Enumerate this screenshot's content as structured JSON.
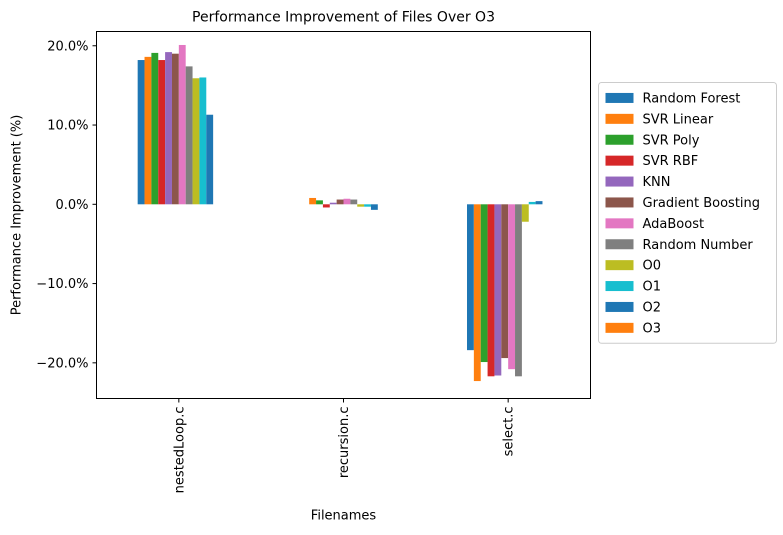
{
  "chart_data": {
    "type": "bar",
    "title": "Performance Improvement of Files Over O3",
    "xlabel": "Filenames",
    "ylabel": "Performance Improvement (%)",
    "categories": [
      "nestedLoop.c",
      "recursion.c",
      "select.c"
    ],
    "ylim": [
      -24.5,
      21.8
    ],
    "yticks": [
      {
        "value": 20,
        "label": "20.0%"
      },
      {
        "value": 10,
        "label": "10.0%"
      },
      {
        "value": 0,
        "label": "0.0%"
      },
      {
        "value": -10,
        "label": "−10.0%"
      },
      {
        "value": -20,
        "label": "−20.0%"
      }
    ],
    "grid": false,
    "legend_position": "right",
    "series": [
      {
        "name": "Random Forest",
        "color": "#1f77b4",
        "values": [
          18.2,
          0.0,
          -18.4
        ]
      },
      {
        "name": "SVR Linear",
        "color": "#ff7f0e",
        "values": [
          18.6,
          0.8,
          -22.3
        ]
      },
      {
        "name": "SVR Poly",
        "color": "#2ca02c",
        "values": [
          19.1,
          0.5,
          -19.9
        ]
      },
      {
        "name": "SVR RBF",
        "color": "#d62728",
        "values": [
          18.2,
          -0.4,
          -21.7
        ]
      },
      {
        "name": "KNN",
        "color": "#9467bd",
        "values": [
          19.2,
          0.2,
          -21.6
        ]
      },
      {
        "name": "Gradient Boosting",
        "color": "#8c564b",
        "values": [
          19.0,
          0.6,
          -19.4
        ]
      },
      {
        "name": "AdaBoost",
        "color": "#e377c2",
        "values": [
          20.1,
          0.7,
          -20.8
        ]
      },
      {
        "name": "Random Number",
        "color": "#7f7f7f",
        "values": [
          17.4,
          0.6,
          -21.7
        ]
      },
      {
        "name": "O0",
        "color": "#bcbd22",
        "values": [
          15.9,
          -0.3,
          -2.2
        ]
      },
      {
        "name": "O1",
        "color": "#17becf",
        "values": [
          16.0,
          -0.3,
          0.3
        ]
      },
      {
        "name": "O2",
        "color": "#1f77b4",
        "values": [
          11.3,
          -0.7,
          0.4
        ]
      },
      {
        "name": "O3",
        "color": "#ff7f0e",
        "values": [
          0.0,
          0.0,
          0.0
        ]
      }
    ]
  }
}
